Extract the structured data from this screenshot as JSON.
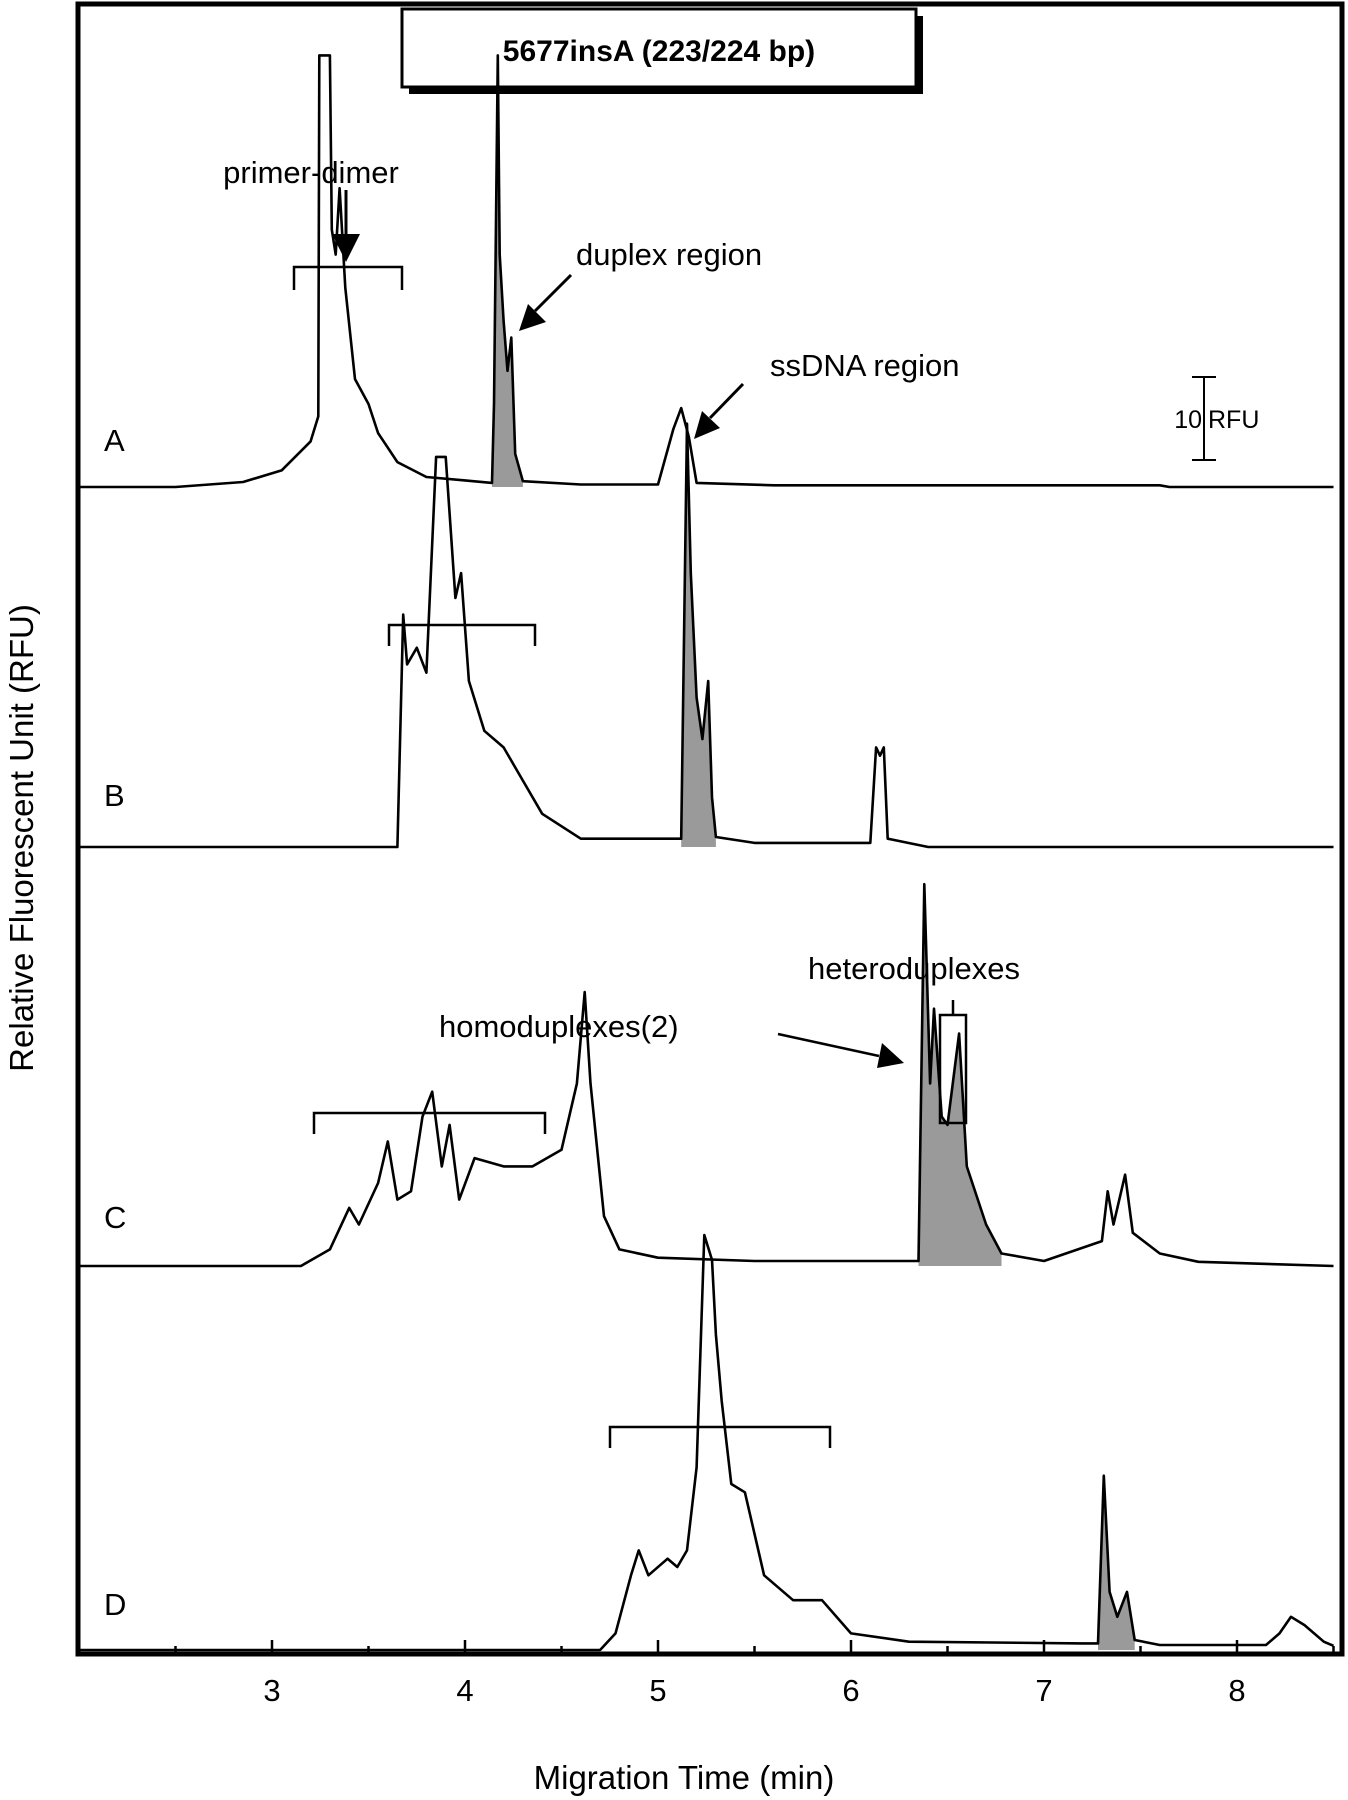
{
  "colors": {
    "line": "#000000",
    "shade": "#9a9a9a",
    "background": "#ffffff"
  },
  "chart_data": {
    "type": "line",
    "title": "5677insA (223/224 bp)",
    "xlabel": "Migration Time (min)",
    "ylabel": "Relative Fluorescent Unit (RFU)",
    "xlim": [
      2,
      8.5
    ],
    "x_ticks": [
      "3",
      "4",
      "5",
      "6",
      "7",
      "8"
    ],
    "grid": false,
    "scale_bar": {
      "value": 10,
      "unit": "RFU",
      "label_value": "10",
      "label_unit": "RFU"
    },
    "annotations": {
      "primer_dimer": "primer-dimer",
      "duplex_region": "duplex region",
      "ssdna_region": "ssDNA region",
      "homoduplexes": "homoduplexes(2)",
      "heteroduplexes": "heteroduplexes"
    },
    "series": [
      {
        "name": "A",
        "points": [
          [
            2.0,
            0
          ],
          [
            2.5,
            0
          ],
          [
            2.85,
            0.6
          ],
          [
            3.05,
            2.0
          ],
          [
            3.2,
            5.5
          ],
          [
            3.24,
            8.5
          ],
          [
            3.245,
            52
          ],
          [
            3.3,
            52
          ],
          [
            3.31,
            31
          ],
          [
            3.33,
            28
          ],
          [
            3.35,
            36
          ],
          [
            3.38,
            24
          ],
          [
            3.43,
            13
          ],
          [
            3.5,
            10
          ],
          [
            3.55,
            6.5
          ],
          [
            3.65,
            3
          ],
          [
            3.8,
            1.2
          ],
          [
            4.0,
            0.8
          ],
          [
            4.14,
            0.5
          ],
          [
            4.15,
            10
          ],
          [
            4.17,
            52
          ],
          [
            4.18,
            28
          ],
          [
            4.2,
            20
          ],
          [
            4.22,
            14
          ],
          [
            4.24,
            18
          ],
          [
            4.26,
            4
          ],
          [
            4.3,
            0.7
          ],
          [
            4.6,
            0.3
          ],
          [
            5.0,
            0.3
          ],
          [
            5.08,
            7
          ],
          [
            5.12,
            9.5
          ],
          [
            5.16,
            6
          ],
          [
            5.2,
            0.5
          ],
          [
            5.6,
            0.2
          ],
          [
            6.5,
            0.2
          ],
          [
            7.6,
            0.2
          ],
          [
            7.65,
            0
          ],
          [
            8.5,
            0
          ]
        ],
        "shaded": [
          [
            4.14,
            0.5
          ],
          [
            4.15,
            10
          ],
          [
            4.17,
            52
          ],
          [
            4.18,
            28
          ],
          [
            4.2,
            20
          ],
          [
            4.22,
            14
          ],
          [
            4.24,
            18
          ],
          [
            4.26,
            4
          ],
          [
            4.3,
            0.7
          ]
        ]
      },
      {
        "name": "B",
        "points": [
          [
            2.0,
            0
          ],
          [
            3.5,
            0
          ],
          [
            3.65,
            0
          ],
          [
            3.68,
            28
          ],
          [
            3.7,
            22
          ],
          [
            3.75,
            24
          ],
          [
            3.8,
            21
          ],
          [
            3.85,
            47
          ],
          [
            3.9,
            47
          ],
          [
            3.95,
            30
          ],
          [
            3.98,
            33
          ],
          [
            4.02,
            20
          ],
          [
            4.1,
            14
          ],
          [
            4.2,
            12
          ],
          [
            4.3,
            8
          ],
          [
            4.4,
            4
          ],
          [
            4.6,
            1
          ],
          [
            5.12,
            1
          ],
          [
            5.15,
            51
          ],
          [
            5.17,
            33
          ],
          [
            5.2,
            18
          ],
          [
            5.23,
            13
          ],
          [
            5.26,
            20
          ],
          [
            5.28,
            6
          ],
          [
            5.3,
            1.2
          ],
          [
            5.5,
            0.5
          ],
          [
            6.1,
            0.5
          ],
          [
            6.13,
            12
          ],
          [
            6.15,
            11
          ],
          [
            6.17,
            12
          ],
          [
            6.19,
            1
          ],
          [
            6.4,
            0
          ],
          [
            8.5,
            0
          ]
        ],
        "shaded": [
          [
            5.12,
            1
          ],
          [
            5.15,
            51
          ],
          [
            5.17,
            33
          ],
          [
            5.2,
            18
          ],
          [
            5.23,
            13
          ],
          [
            5.26,
            20
          ],
          [
            5.28,
            6
          ],
          [
            5.3,
            1.2
          ]
        ]
      },
      {
        "name": "C",
        "points": [
          [
            2.0,
            0
          ],
          [
            3.15,
            0
          ],
          [
            3.3,
            2
          ],
          [
            3.4,
            7
          ],
          [
            3.45,
            5
          ],
          [
            3.55,
            10
          ],
          [
            3.6,
            15
          ],
          [
            3.65,
            8
          ],
          [
            3.72,
            9
          ],
          [
            3.78,
            18
          ],
          [
            3.83,
            21
          ],
          [
            3.88,
            12
          ],
          [
            3.92,
            17
          ],
          [
            3.97,
            8
          ],
          [
            4.05,
            13
          ],
          [
            4.2,
            12
          ],
          [
            4.35,
            12
          ],
          [
            4.5,
            14
          ],
          [
            4.58,
            22
          ],
          [
            4.62,
            33
          ],
          [
            4.65,
            22
          ],
          [
            4.72,
            6
          ],
          [
            4.8,
            2
          ],
          [
            5.0,
            1
          ],
          [
            5.5,
            0.6
          ],
          [
            6.35,
            0.6
          ],
          [
            6.38,
            46
          ],
          [
            6.41,
            22
          ],
          [
            6.43,
            31
          ],
          [
            6.47,
            18
          ],
          [
            6.5,
            17
          ],
          [
            6.56,
            28
          ],
          [
            6.6,
            12
          ],
          [
            6.7,
            5
          ],
          [
            6.78,
            1.5
          ],
          [
            7.0,
            0.6
          ],
          [
            7.3,
            3
          ],
          [
            7.33,
            9
          ],
          [
            7.36,
            5
          ],
          [
            7.42,
            11
          ],
          [
            7.46,
            4
          ],
          [
            7.6,
            1.5
          ],
          [
            7.8,
            0.5
          ],
          [
            8.5,
            0
          ]
        ],
        "shaded": [
          [
            6.35,
            0.6
          ],
          [
            6.38,
            46
          ],
          [
            6.41,
            22
          ],
          [
            6.43,
            31
          ],
          [
            6.47,
            18
          ],
          [
            6.5,
            17
          ],
          [
            6.56,
            28
          ],
          [
            6.6,
            12
          ],
          [
            6.7,
            5
          ],
          [
            6.78,
            1.5
          ]
        ]
      },
      {
        "name": "D",
        "points": [
          [
            2.0,
            0
          ],
          [
            4.7,
            0
          ],
          [
            4.78,
            2
          ],
          [
            4.86,
            9
          ],
          [
            4.9,
            12
          ],
          [
            4.95,
            9
          ],
          [
            5.05,
            11
          ],
          [
            5.1,
            10
          ],
          [
            5.15,
            12
          ],
          [
            5.2,
            22
          ],
          [
            5.24,
            50
          ],
          [
            5.28,
            47
          ],
          [
            5.3,
            38
          ],
          [
            5.33,
            30
          ],
          [
            5.38,
            20
          ],
          [
            5.45,
            19
          ],
          [
            5.55,
            9
          ],
          [
            5.7,
            6
          ],
          [
            5.85,
            6
          ],
          [
            6.0,
            2
          ],
          [
            6.3,
            1
          ],
          [
            7.2,
            0.8
          ],
          [
            7.28,
            0.8
          ],
          [
            7.31,
            21
          ],
          [
            7.34,
            7
          ],
          [
            7.38,
            4
          ],
          [
            7.43,
            7
          ],
          [
            7.47,
            1.2
          ],
          [
            7.6,
            0.6
          ],
          [
            8.15,
            0.6
          ],
          [
            8.22,
            2
          ],
          [
            8.28,
            4
          ],
          [
            8.35,
            3
          ],
          [
            8.45,
            1
          ],
          [
            8.5,
            0.5
          ]
        ],
        "shaded": [
          [
            7.28,
            0.8
          ],
          [
            7.31,
            21
          ],
          [
            7.34,
            7
          ],
          [
            7.38,
            4
          ],
          [
            7.43,
            7
          ],
          [
            7.47,
            1.2
          ]
        ]
      }
    ]
  }
}
